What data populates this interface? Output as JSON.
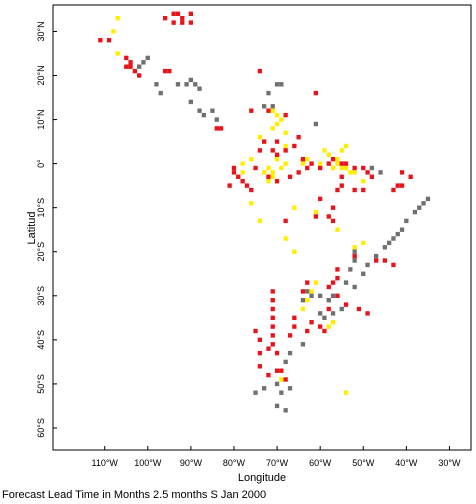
{
  "chart_data": {
    "type": "scatter",
    "xlabel": "Longitude",
    "ylabel": "Latitud",
    "xlim": [
      -122,
      -25
    ],
    "ylim": [
      -65,
      36
    ],
    "x_ticks": [
      {
        "value": -110,
        "label": "110°W"
      },
      {
        "value": -100,
        "label": "100°W"
      },
      {
        "value": -90,
        "label": "90°W"
      },
      {
        "value": -80,
        "label": "80°W"
      },
      {
        "value": -70,
        "label": "70°W"
      },
      {
        "value": -60,
        "label": "60°W"
      },
      {
        "value": -50,
        "label": "50°W"
      },
      {
        "value": -40,
        "label": "40°W"
      },
      {
        "value": -30,
        "label": "30°W"
      }
    ],
    "y_ticks": [
      {
        "value": 30,
        "label": "30°N"
      },
      {
        "value": 20,
        "label": "20°N"
      },
      {
        "value": 10,
        "label": "10°N"
      },
      {
        "value": 0,
        "label": "0°"
      },
      {
        "value": -10,
        "label": "10°S"
      },
      {
        "value": -20,
        "label": "20°S"
      },
      {
        "value": -30,
        "label": "30°S"
      },
      {
        "value": -40,
        "label": "40°S"
      },
      {
        "value": -50,
        "label": "50°S"
      },
      {
        "value": -60,
        "label": "60°S"
      }
    ],
    "colors": {
      "red": "#e8141c",
      "yellow": "#ffee00",
      "gray": "#707070"
    },
    "series": [
      {
        "color": "red",
        "points": [
          [
            -94,
            34
          ],
          [
            -93,
            34
          ],
          [
            -90,
            34
          ],
          [
            -96,
            33
          ],
          [
            -92,
            33
          ],
          [
            -94,
            32
          ],
          [
            -92,
            32
          ],
          [
            -90,
            32
          ],
          [
            -111,
            28
          ],
          [
            -109,
            28
          ],
          [
            -105,
            24
          ],
          [
            -104,
            23
          ],
          [
            -105,
            22
          ],
          [
            -104,
            22
          ],
          [
            -103,
            21
          ],
          [
            -102,
            20
          ],
          [
            -96,
            21
          ],
          [
            -95,
            21
          ],
          [
            -74,
            21
          ],
          [
            -61,
            16
          ],
          [
            -84,
            8
          ],
          [
            -83,
            8
          ],
          [
            -76,
            12
          ],
          [
            -72,
            12
          ],
          [
            -68,
            11
          ],
          [
            -65,
            6
          ],
          [
            -66,
            4
          ],
          [
            -70,
            5
          ],
          [
            -73,
            5
          ],
          [
            -74,
            3
          ],
          [
            -68,
            3
          ],
          [
            -71,
            3
          ],
          [
            -70,
            2
          ],
          [
            -64,
            1
          ],
          [
            -62,
            0
          ],
          [
            -58,
            0
          ],
          [
            -57,
            1
          ],
          [
            -55,
            0
          ],
          [
            -54,
            0
          ],
          [
            -52,
            -1
          ],
          [
            -50,
            -1
          ],
          [
            -49,
            -2
          ],
          [
            -48,
            -3
          ],
          [
            -80,
            -1
          ],
          [
            -80,
            -2
          ],
          [
            -79,
            -3
          ],
          [
            -78,
            -4
          ],
          [
            -81,
            -5
          ],
          [
            -77,
            -5
          ],
          [
            -75,
            -1
          ],
          [
            -76,
            -6
          ],
          [
            -72,
            -3
          ],
          [
            -70,
            -4
          ],
          [
            -67,
            -3
          ],
          [
            -65,
            -2
          ],
          [
            -63,
            -1
          ],
          [
            -60,
            -1
          ],
          [
            -55,
            -3
          ],
          [
            -55,
            -5
          ],
          [
            -56,
            -6
          ],
          [
            -52,
            -6
          ],
          [
            -50,
            -6
          ],
          [
            -41,
            -2
          ],
          [
            -39,
            -3
          ],
          [
            -41,
            -5
          ],
          [
            -43,
            -6
          ],
          [
            -42,
            -5
          ],
          [
            -60,
            -8
          ],
          [
            -57,
            -10
          ],
          [
            -58,
            -12
          ],
          [
            -57,
            -13
          ],
          [
            -61,
            -12
          ],
          [
            -68,
            -13
          ],
          [
            -52,
            -21
          ],
          [
            -47,
            -22
          ],
          [
            -45,
            -22
          ],
          [
            -43,
            -23
          ],
          [
            -56,
            -24
          ],
          [
            -56,
            -26
          ],
          [
            -57,
            -27
          ],
          [
            -58,
            -28
          ],
          [
            -63,
            -27
          ],
          [
            -64,
            -29
          ],
          [
            -56,
            -30
          ],
          [
            -54,
            -32
          ],
          [
            -51,
            -33
          ],
          [
            -49,
            -34
          ],
          [
            -71,
            -29
          ],
          [
            -71,
            -31
          ],
          [
            -71,
            -33
          ],
          [
            -71,
            -35
          ],
          [
            -71,
            -37
          ],
          [
            -71,
            -39
          ],
          [
            -71,
            -41
          ],
          [
            -70,
            -43
          ],
          [
            -72,
            -42
          ],
          [
            -74,
            -40
          ],
          [
            -74,
            -43
          ],
          [
            -75,
            -38
          ],
          [
            -74,
            -46
          ],
          [
            -72,
            -48
          ],
          [
            -68,
            -49
          ],
          [
            -66,
            -35
          ],
          [
            -66,
            -37
          ],
          [
            -67,
            -39
          ],
          [
            -63,
            -38
          ],
          [
            -62,
            -36
          ],
          [
            -60,
            -37
          ],
          [
            -59,
            -38
          ],
          [
            -58,
            -33
          ],
          [
            -70,
            -47
          ],
          [
            -69,
            -47
          ]
        ]
      },
      {
        "color": "yellow",
        "points": [
          [
            -107,
            33
          ],
          [
            -108,
            30
          ],
          [
            -107,
            25
          ],
          [
            -69,
            10
          ],
          [
            -70,
            11
          ],
          [
            -71,
            12
          ],
          [
            -68,
            7
          ],
          [
            -70,
            9
          ],
          [
            -71,
            8
          ],
          [
            -74,
            6
          ],
          [
            -68,
            4
          ],
          [
            -72,
            -1
          ],
          [
            -71,
            -2
          ],
          [
            -71,
            -3
          ],
          [
            -72,
            -4
          ],
          [
            -73,
            -2
          ],
          [
            -70,
            1
          ],
          [
            -69,
            -1
          ],
          [
            -68,
            0
          ],
          [
            -64,
            0
          ],
          [
            -63,
            1
          ],
          [
            -60,
            0
          ],
          [
            -56,
            1
          ],
          [
            -56,
            0
          ],
          [
            -57,
            -1
          ],
          [
            -55,
            -1
          ],
          [
            -54,
            -1
          ],
          [
            -53,
            -2
          ],
          [
            -52,
            -2
          ],
          [
            -50,
            -4
          ],
          [
            -58,
            2
          ],
          [
            -59,
            3
          ],
          [
            -55,
            3
          ],
          [
            -54,
            4
          ],
          [
            -76,
            -9
          ],
          [
            -68,
            -17
          ],
          [
            -74,
            -13
          ],
          [
            -66,
            -10
          ],
          [
            -61,
            -11
          ],
          [
            -56,
            -15
          ],
          [
            -52,
            -19
          ],
          [
            -50,
            -18
          ],
          [
            -61,
            -27
          ],
          [
            -62,
            -29
          ],
          [
            -63,
            -31
          ],
          [
            -64,
            -33
          ],
          [
            -57,
            -36
          ],
          [
            -58,
            -37
          ],
          [
            -54,
            -52
          ],
          [
            -69,
            -49
          ],
          [
            -76,
            1
          ],
          [
            -78,
            0
          ],
          [
            -78,
            -2
          ],
          [
            -66,
            -20
          ]
        ]
      },
      {
        "color": "gray",
        "points": [
          [
            -100,
            24
          ],
          [
            -101,
            23
          ],
          [
            -102,
            22
          ],
          [
            -98,
            18
          ],
          [
            -97,
            16
          ],
          [
            -93,
            18
          ],
          [
            -91,
            18
          ],
          [
            -90,
            19
          ],
          [
            -89,
            18
          ],
          [
            -88,
            17
          ],
          [
            -90,
            14
          ],
          [
            -88,
            12
          ],
          [
            -87,
            11
          ],
          [
            -85,
            12
          ],
          [
            -84,
            10
          ],
          [
            -70,
            18
          ],
          [
            -69,
            18
          ],
          [
            -72,
            16
          ],
          [
            -73,
            13
          ],
          [
            -71,
            13
          ],
          [
            -61,
            9
          ],
          [
            -48,
            -1
          ],
          [
            -46,
            -2
          ],
          [
            -35,
            -8
          ],
          [
            -36,
            -9
          ],
          [
            -37,
            -10
          ],
          [
            -38,
            -11
          ],
          [
            -40,
            -13
          ],
          [
            -41,
            -15
          ],
          [
            -42,
            -16
          ],
          [
            -43,
            -17
          ],
          [
            -44,
            -18
          ],
          [
            -45,
            -19
          ],
          [
            -47,
            -21
          ],
          [
            -49,
            -23
          ],
          [
            -52,
            -20
          ],
          [
            -52,
            -22
          ],
          [
            -53,
            -24
          ],
          [
            -54,
            -27
          ],
          [
            -57,
            -30
          ],
          [
            -58,
            -31
          ],
          [
            -60,
            -30
          ],
          [
            -62,
            -30
          ],
          [
            -63,
            -29
          ],
          [
            -64,
            -31
          ],
          [
            -50,
            -25
          ],
          [
            -52,
            -28
          ],
          [
            -55,
            -33
          ],
          [
            -57,
            -34
          ],
          [
            -59,
            -35
          ],
          [
            -60,
            -34
          ],
          [
            -64,
            -41
          ],
          [
            -67,
            -43
          ],
          [
            -68,
            -45
          ],
          [
            -69,
            -52
          ],
          [
            -67,
            -51
          ],
          [
            -75,
            -52
          ],
          [
            -73,
            -51
          ],
          [
            -70,
            -50
          ],
          [
            -68,
            -56
          ],
          [
            -70,
            -55
          ]
        ]
      }
    ]
  },
  "footer": {
    "caption": "Forecast Lead Time in Months 2.5 months S Jan 2000"
  }
}
